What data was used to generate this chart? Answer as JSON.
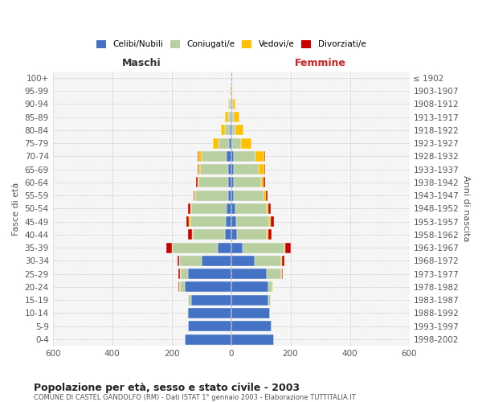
{
  "age_groups": [
    "0-4",
    "5-9",
    "10-14",
    "15-19",
    "20-24",
    "25-29",
    "30-34",
    "35-39",
    "40-44",
    "45-49",
    "50-54",
    "55-59",
    "60-64",
    "65-69",
    "70-74",
    "75-79",
    "80-84",
    "85-89",
    "90-94",
    "95-99",
    "100+"
  ],
  "birth_years": [
    "1998-2002",
    "1993-1997",
    "1988-1992",
    "1983-1987",
    "1978-1982",
    "1973-1977",
    "1968-1972",
    "1963-1967",
    "1958-1962",
    "1953-1957",
    "1948-1952",
    "1943-1947",
    "1938-1942",
    "1933-1937",
    "1928-1932",
    "1923-1927",
    "1918-1922",
    "1913-1917",
    "1908-1912",
    "1903-1907",
    "≤ 1902"
  ],
  "males": {
    "celibi": [
      155,
      145,
      145,
      135,
      155,
      145,
      100,
      45,
      20,
      18,
      15,
      10,
      10,
      10,
      14,
      8,
      3,
      2,
      2,
      1,
      1
    ],
    "coniugati": [
      0,
      0,
      2,
      10,
      18,
      25,
      75,
      155,
      110,
      120,
      120,
      110,
      100,
      95,
      85,
      35,
      17,
      8,
      4,
      1,
      0
    ],
    "vedovi": [
      0,
      0,
      0,
      0,
      2,
      3,
      0,
      0,
      2,
      3,
      3,
      2,
      3,
      5,
      12,
      18,
      15,
      10,
      5,
      2,
      0
    ],
    "divorziati": [
      0,
      0,
      0,
      0,
      2,
      3,
      5,
      18,
      12,
      10,
      8,
      5,
      5,
      2,
      1,
      0,
      0,
      0,
      0,
      0,
      0
    ]
  },
  "females": {
    "nubili": [
      145,
      135,
      130,
      125,
      125,
      120,
      80,
      40,
      20,
      18,
      15,
      10,
      10,
      8,
      8,
      5,
      3,
      3,
      2,
      1,
      1
    ],
    "coniugate": [
      0,
      0,
      2,
      8,
      15,
      50,
      90,
      140,
      100,
      110,
      105,
      100,
      90,
      85,
      75,
      28,
      12,
      7,
      4,
      1,
      0
    ],
    "vedove": [
      0,
      0,
      0,
      0,
      1,
      1,
      2,
      3,
      5,
      6,
      6,
      8,
      10,
      20,
      30,
      35,
      28,
      18,
      8,
      3,
      0
    ],
    "divorziate": [
      0,
      0,
      0,
      0,
      2,
      3,
      8,
      18,
      10,
      10,
      8,
      5,
      5,
      3,
      1,
      0,
      0,
      0,
      0,
      0,
      0
    ]
  },
  "colors": {
    "celibi_nubili": "#4472c4",
    "coniugati": "#b8cfa0",
    "vedovi": "#ffc000",
    "divorziati": "#cc0000"
  },
  "xlim": 600,
  "title": "Popolazione per età, sesso e stato civile - 2003",
  "subtitle": "COMUNE DI CASTEL GANDOLFO (RM) - Dati ISTAT 1° gennaio 2003 - Elaborazione TUTTITALIA.IT",
  "xlabel_left": "Maschi",
  "xlabel_right": "Femmine",
  "ylabel_left": "Fasce di età",
  "ylabel_right": "Anni di nascita",
  "background_color": "#f5f5f5"
}
